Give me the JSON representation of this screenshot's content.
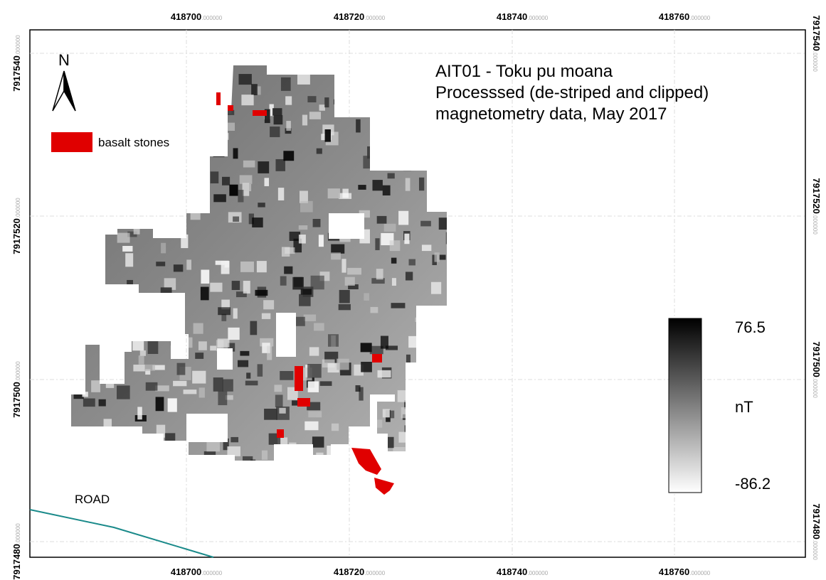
{
  "map": {
    "title_lines": [
      "AIT01 - Toku pu moana",
      "Processsed (de-striped and clipped)",
      "magnetometry data, May 2017"
    ],
    "north_label": "N",
    "legend": {
      "label": "basalt stones"
    },
    "road_label": "ROAD",
    "colorbar": {
      "max": "76.5",
      "unit": "nT",
      "min": "-86.2"
    },
    "x_coords": [
      {
        "main": "418700",
        "decimals": ".000000"
      },
      {
        "main": "418720",
        "decimals": ".000000"
      },
      {
        "main": "418740",
        "decimals": ".000000"
      },
      {
        "main": "418760",
        "decimals": ".000000"
      }
    ],
    "y_coords": [
      {
        "main": "7917540",
        "decimals": ".000000"
      },
      {
        "main": "7917520",
        "decimals": ".000000"
      },
      {
        "main": "7917500",
        "decimals": ".000000"
      },
      {
        "main": "7917480",
        "decimals": ".000000"
      }
    ]
  }
}
